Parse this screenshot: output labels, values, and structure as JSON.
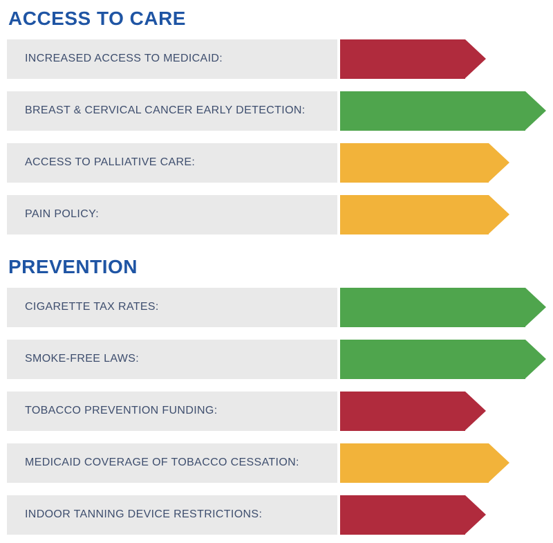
{
  "colors": {
    "heading": "#1F55A4",
    "label": "#3E4E6E",
    "row_bg": "#E9E9E9",
    "red": "#B02B3D",
    "yellow": "#F2B33A",
    "green": "#4FA54D"
  },
  "sections": [
    {
      "title": "ACCESS TO CARE",
      "rows": [
        {
          "label": "INCREASED ACCESS TO MEDICAID:",
          "rating": "red"
        },
        {
          "label": "BREAST & CERVICAL CANCER EARLY DETECTION:",
          "rating": "green"
        },
        {
          "label": "ACCESS TO PALLIATIVE CARE:",
          "rating": "yellow"
        },
        {
          "label": "PAIN POLICY:",
          "rating": "yellow"
        }
      ]
    },
    {
      "title": "PREVENTION",
      "rows": [
        {
          "label": "CIGARETTE TAX RATES:",
          "rating": "green"
        },
        {
          "label": "SMOKE-FREE LAWS:",
          "rating": "green"
        },
        {
          "label": "TOBACCO PREVENTION FUNDING:",
          "rating": "red"
        },
        {
          "label": "MEDICAID COVERAGE OF TOBACCO CESSATION:",
          "rating": "yellow"
        },
        {
          "label": "INDOOR TANNING DEVICE RESTRICTIONS:",
          "rating": "red"
        }
      ]
    }
  ],
  "chart_data": [
    {
      "type": "bar",
      "title": "ACCESS TO CARE",
      "categories": [
        "INCREASED ACCESS TO MEDICAID:",
        "BREAST & CERVICAL CANCER EARLY DETECTION:",
        "ACCESS TO PALLIATIVE CARE:",
        "PAIN POLICY:"
      ],
      "values": [
        1,
        3,
        2,
        2
      ],
      "ratings": [
        "red",
        "green",
        "yellow",
        "yellow"
      ],
      "colors": [
        "#B02B3D",
        "#4FA54D",
        "#F2B33A",
        "#F2B33A"
      ],
      "value_scale": "1 = red (shortest arrow), 2 = yellow (medium arrow), 3 = green (longest arrow)",
      "orientation": "horizontal",
      "xlabel": "",
      "ylabel": "",
      "legend": "none",
      "grid": false
    },
    {
      "type": "bar",
      "title": "PREVENTION",
      "categories": [
        "CIGARETTE TAX RATES:",
        "SMOKE-FREE LAWS:",
        "TOBACCO PREVENTION FUNDING:",
        "MEDICAID COVERAGE OF TOBACCO CESSATION:",
        "INDOOR TANNING DEVICE RESTRICTIONS:"
      ],
      "values": [
        3,
        3,
        1,
        2,
        1
      ],
      "ratings": [
        "green",
        "green",
        "red",
        "yellow",
        "red"
      ],
      "colors": [
        "#4FA54D",
        "#4FA54D",
        "#B02B3D",
        "#F2B33A",
        "#B02B3D"
      ],
      "value_scale": "1 = red (shortest arrow), 2 = yellow (medium arrow), 3 = green (longest arrow)",
      "orientation": "horizontal",
      "xlabel": "",
      "ylabel": "",
      "legend": "none",
      "grid": false
    }
  ]
}
